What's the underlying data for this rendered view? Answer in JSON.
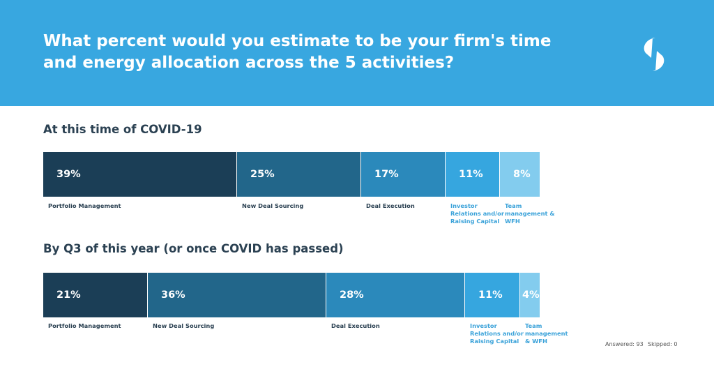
{
  "title_line1": "What percent would you estimate to be your firm's time",
  "title_line2": "and energy allocation across the 5 activities?",
  "colors": [
    "#1b3e56",
    "#22668a",
    "#2b89bb",
    "#36a6df",
    "#83ccee"
  ],
  "label_colors": [
    "#2b4152",
    "#2b4152",
    "#2b4152",
    "#3aa2d9",
    "#3aa2d9"
  ],
  "footer": {
    "answered": "Answered: 93",
    "skipped": "Skipped: 0"
  },
  "chart_data": [
    {
      "type": "bar",
      "title": "At this time of COVID-19",
      "categories": [
        "Portfolio Management",
        "New Deal Sourcing",
        "Deal Execution",
        "Investor Relations and/or Raising Capital",
        "Team management & WFH"
      ],
      "values": [
        39,
        25,
        17,
        11,
        8
      ],
      "value_labels": [
        "39%",
        "25%",
        "17%",
        "11%",
        "8%"
      ],
      "category_lines": [
        [
          "Portfolio Management"
        ],
        [
          "New Deal Sourcing"
        ],
        [
          "Deal Execution"
        ],
        [
          "Investor",
          "Relations and/or",
          "Raising Capital"
        ],
        [
          "Team",
          "management &",
          "WFH"
        ]
      ]
    },
    {
      "type": "bar",
      "title": "By Q3 of this year (or once COVID has passed)",
      "categories": [
        "Portfolio Management",
        "New Deal Sourcing",
        "Deal Execution",
        "Investor Relations and/or Raising Capital",
        "Team management & WFH"
      ],
      "values": [
        21,
        36,
        28,
        11,
        4
      ],
      "value_labels": [
        "21%",
        "36%",
        "28%",
        "11%",
        "4%"
      ],
      "category_lines": [
        [
          "Portfolio Management"
        ],
        [
          "New Deal Sourcing"
        ],
        [
          "Deal Execution"
        ],
        [
          "Investor",
          "Relations and/or",
          "Raising Capital"
        ],
        [
          "Team",
          "management",
          "& WFH"
        ]
      ]
    }
  ]
}
